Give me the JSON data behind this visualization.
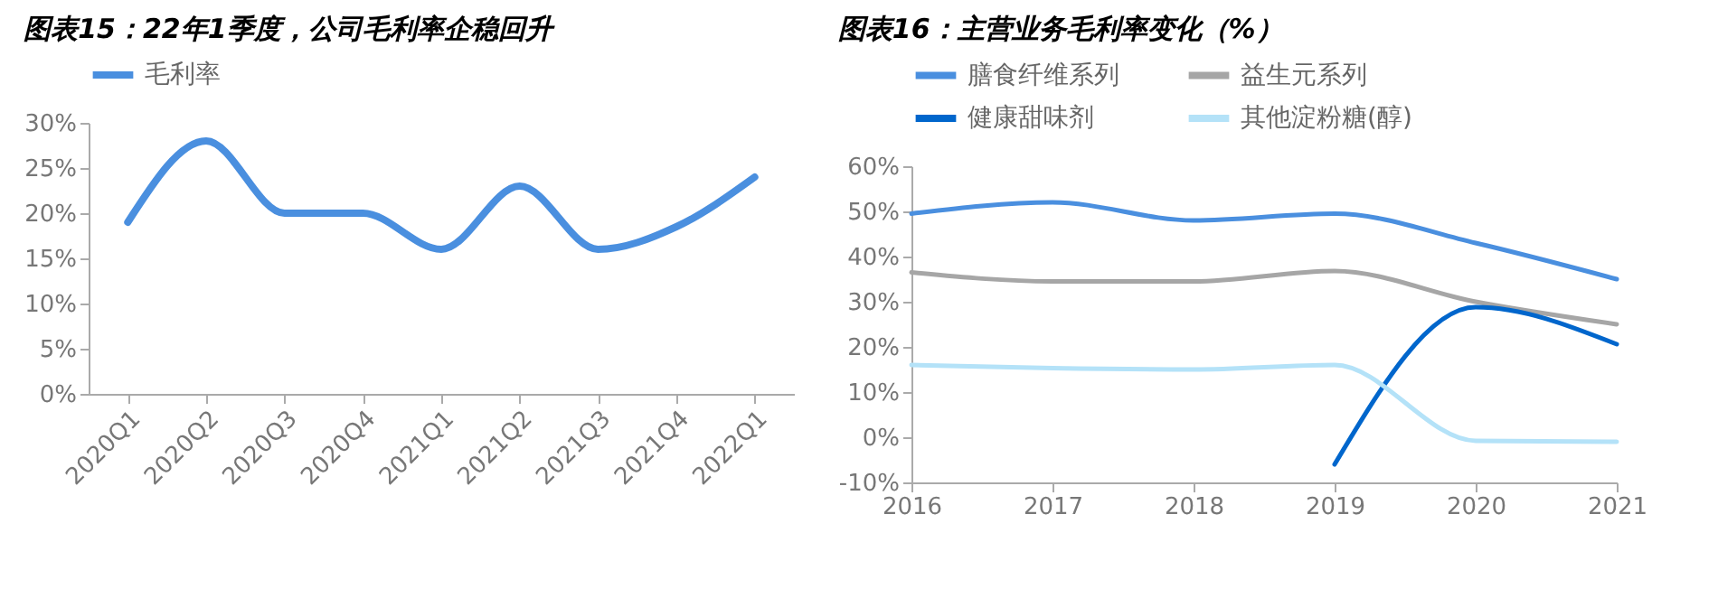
{
  "chart_data": [
    {
      "type": "line",
      "title": "图表15：22年1季度，公司毛利率企稳回升",
      "categories": [
        "2020Q1",
        "2020Q2",
        "2020Q3",
        "2020Q4",
        "2021Q1",
        "2021Q2",
        "2021Q3",
        "2021Q4",
        "2022Q1"
      ],
      "series": [
        {
          "name": "毛利率",
          "color": "#4a8fdf",
          "values": [
            19,
            28,
            20,
            20,
            16,
            23,
            16,
            18.5,
            24
          ]
        }
      ],
      "ylim": [
        0,
        30
      ],
      "yticks": [
        {
          "value": 0,
          "label": "0%"
        },
        {
          "value": 5,
          "label": "5%"
        },
        {
          "value": 10,
          "label": "10%"
        },
        {
          "value": 15,
          "label": "15%"
        },
        {
          "value": 20,
          "label": "20%"
        },
        {
          "value": 25,
          "label": "25%"
        },
        {
          "value": 30,
          "label": "30%"
        }
      ],
      "grid": false,
      "legend": "top"
    },
    {
      "type": "line",
      "title": "图表16：主营业务毛利率变化（%）",
      "categories": [
        "2016",
        "2017",
        "2018",
        "2019",
        "2020",
        "2021"
      ],
      "series": [
        {
          "name": "膳食纤维系列",
          "color": "#4a8fdf",
          "values": [
            49.5,
            52,
            48,
            49.5,
            43,
            35
          ]
        },
        {
          "name": "益生元系列",
          "color": "#a6a6a6",
          "values": [
            36.5,
            34.5,
            34.5,
            36.8,
            30,
            25
          ]
        },
        {
          "name": "健康甜味剂",
          "color": "#0066cc",
          "values": [
            null,
            null,
            null,
            -6,
            28.8,
            20.6
          ]
        },
        {
          "name": "其他淀粉糖(醇)",
          "color": "#b4e2f8",
          "values": [
            16,
            15.3,
            15,
            16,
            -0.8,
            -1
          ]
        }
      ],
      "ylim": [
        -10,
        60
      ],
      "yticks": [
        {
          "value": -10,
          "label": "-10%"
        },
        {
          "value": 0,
          "label": "0%"
        },
        {
          "value": 10,
          "label": "10%"
        },
        {
          "value": 20,
          "label": "20%"
        },
        {
          "value": 30,
          "label": "30%"
        },
        {
          "value": 40,
          "label": "40%"
        },
        {
          "value": 50,
          "label": "50%"
        },
        {
          "value": 60,
          "label": "60%"
        }
      ],
      "grid": false,
      "legend": "top"
    }
  ]
}
